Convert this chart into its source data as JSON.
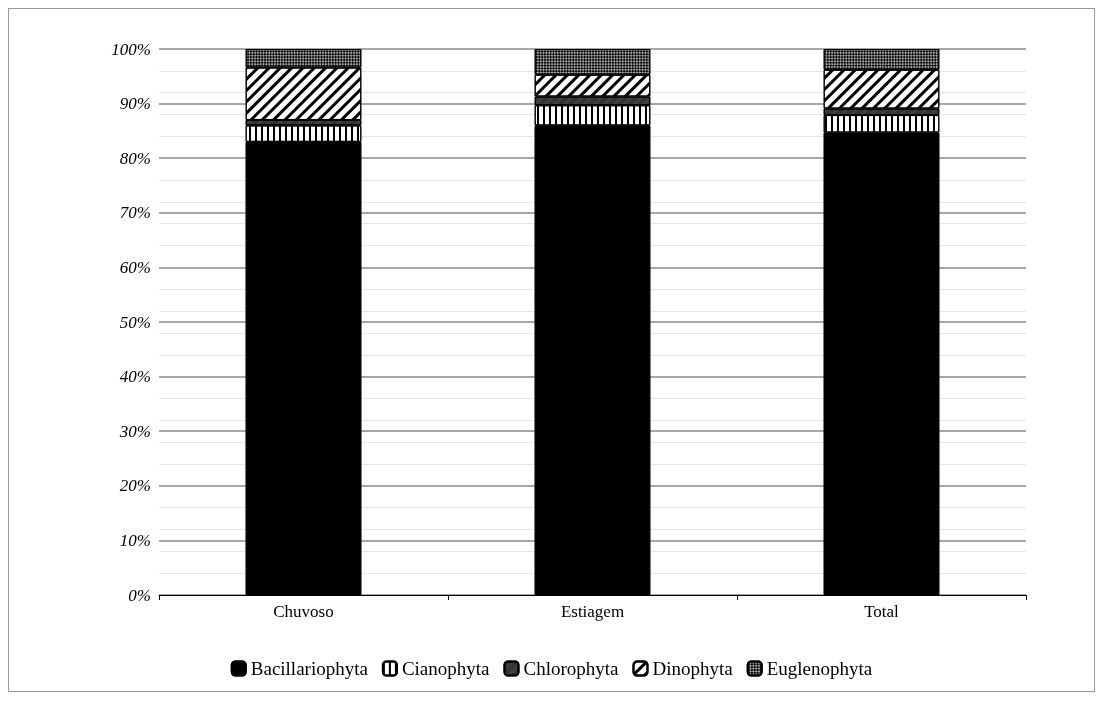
{
  "chart_data": {
    "type": "bar",
    "stacked": true,
    "categories": [
      "Chuvoso",
      "Estiagem",
      "Total"
    ],
    "series": [
      {
        "name": "Bacillariophyta",
        "color": "#000000",
        "values": [
          83.0,
          86.0,
          84.7
        ]
      },
      {
        "name": "Cianophyta",
        "color": "#ffffff",
        "values": [
          3.0,
          3.7,
          3.2
        ]
      },
      {
        "name": "Chlorophyta",
        "color": "#404040",
        "values": [
          1.0,
          1.6,
          1.2
        ]
      },
      {
        "name": "Dinophyta",
        "color": "#ffffff",
        "values": [
          9.6,
          4.0,
          7.1
        ]
      },
      {
        "name": "Euglenophyta",
        "color": "#a0a0a0",
        "values": [
          3.4,
          4.7,
          3.8
        ]
      }
    ],
    "ylim": [
      0,
      100
    ],
    "yticks": [
      {
        "value": 0,
        "label": "0%"
      },
      {
        "value": 10,
        "label": "10%"
      },
      {
        "value": 20,
        "label": "20%"
      },
      {
        "value": 30,
        "label": "30%"
      },
      {
        "value": 40,
        "label": "40%"
      },
      {
        "value": 50,
        "label": "50%"
      },
      {
        "value": 60,
        "label": "60%"
      },
      {
        "value": 70,
        "label": "70%"
      },
      {
        "value": 80,
        "label": "80%"
      },
      {
        "value": 90,
        "label": "90%"
      },
      {
        "value": 100,
        "label": "100%"
      }
    ],
    "grid": true,
    "legend": "bottom"
  }
}
